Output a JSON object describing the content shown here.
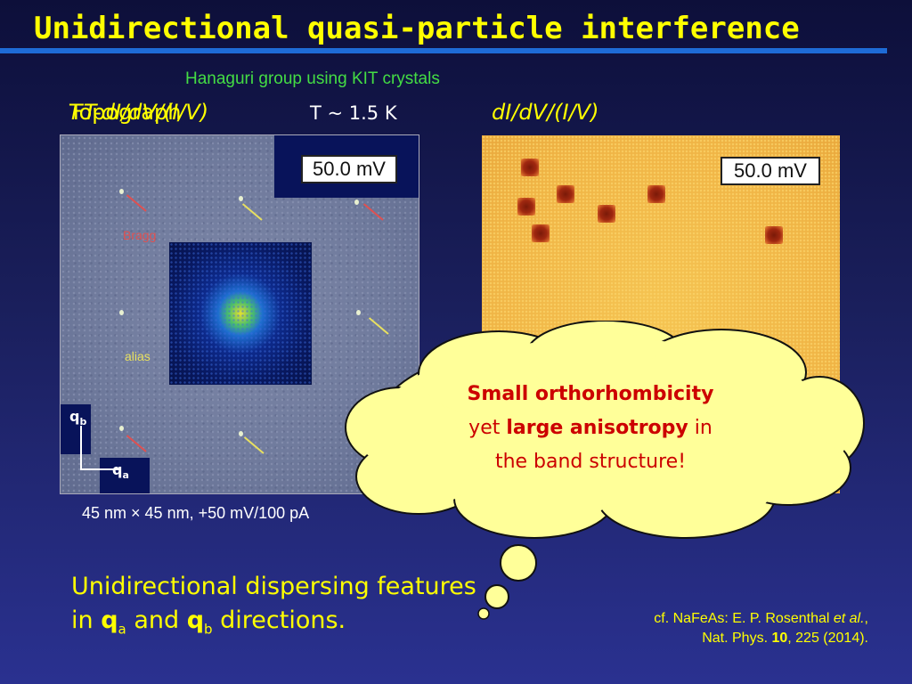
{
  "slide": {
    "title": "Unidirectional quasi-particle interference",
    "subtitle": "Hanaguri group using KIT crystals"
  },
  "left_panel": {
    "label_under": "Topograph",
    "label_over": "FT-dI/dV/(I/V)",
    "temperature": "T ~ 1.5 K",
    "energy_badge": "50.0 mV",
    "annotation_bragg": "Bragg",
    "annotation_alias": "alias",
    "axis_b": "q",
    "axis_b_sub": "b",
    "axis_a": "q",
    "axis_a_sub": "a",
    "caption": "45 nm × 45 nm, +50 mV/100 pA",
    "colors": {
      "bragg": "#e05050",
      "alias": "#e8e060"
    }
  },
  "right_panel": {
    "label": "dI/dV/(I/V)",
    "energy_badge": "50.0 mV"
  },
  "callout": {
    "line1_bold": "Small orthorhombicity",
    "line2_prefix": "yet ",
    "line2_bold": "large anisotropy",
    "line2_suffix": " in",
    "line3": "the band structure!",
    "text_color": "#cc0000",
    "fill_color": "#ffff99"
  },
  "body_text": {
    "line1": "Unidirectional dispersing features",
    "line2_prefix": "in ",
    "q": "q",
    "sub_a": "a",
    "mid": " and ",
    "sub_b": "b",
    "suffix": " directions."
  },
  "reference": {
    "line1_prefix": "cf. NaFeAs: E. P. Rosenthal ",
    "line1_italic": "et al.",
    "line1_suffix": ",",
    "line2_prefix": "Nat. Phys. ",
    "volume": "10",
    "line2_suffix": ", 225 (2014)."
  }
}
